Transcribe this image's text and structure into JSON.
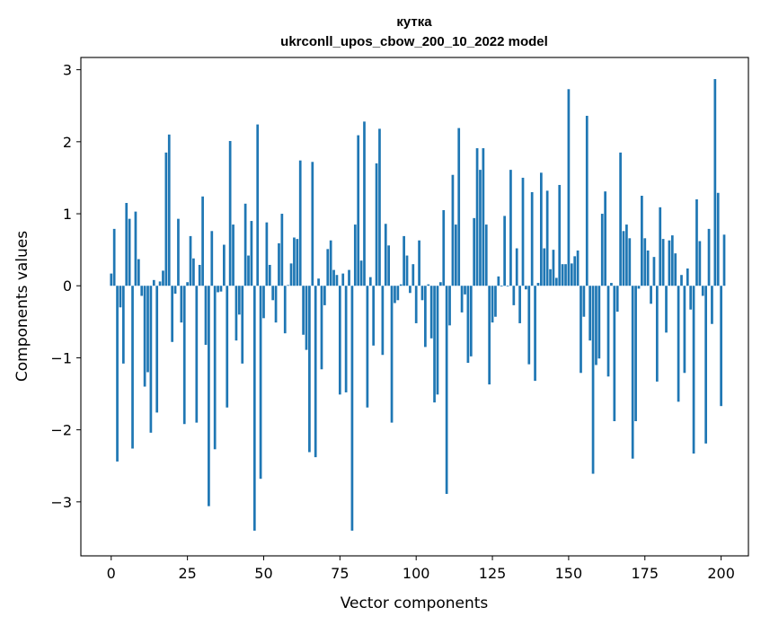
{
  "chart_data": {
    "type": "bar",
    "title": "кутка",
    "subtitle": "ukrconll_upos_cbow_200_10_2022 model",
    "xlabel": "Vector components",
    "ylabel": "Components values",
    "xlim": [
      -9.95,
      208.95
    ],
    "ylim": [
      -3.75,
      3.17
    ],
    "xticks": [
      0,
      25,
      50,
      75,
      100,
      125,
      150,
      175,
      200
    ],
    "yticks": [
      -3,
      -2,
      -1,
      0,
      1,
      2,
      3
    ],
    "ytick_labels": [
      "−3",
      "−2",
      "−1",
      "0",
      "1",
      "2",
      "3"
    ],
    "bar_color": "#1f77b4",
    "grid": false,
    "values": [
      0.17,
      0.79,
      -2.44,
      -0.3,
      -1.08,
      1.15,
      0.93,
      -2.26,
      1.03,
      0.37,
      -0.14,
      -1.4,
      -1.2,
      -2.04,
      0.08,
      -1.76,
      0.06,
      0.21,
      1.85,
      2.1,
      -0.78,
      -0.11,
      0.93,
      -0.51,
      -1.92,
      0.05,
      0.69,
      0.38,
      -1.9,
      0.29,
      1.24,
      -0.82,
      -3.06,
      0.76,
      -2.27,
      -0.09,
      -0.08,
      0.57,
      -1.69,
      2.01,
      0.85,
      -0.76,
      -0.4,
      -1.08,
      1.14,
      0.42,
      0.9,
      -3.4,
      2.24,
      -2.68,
      -0.45,
      0.88,
      0.29,
      -0.2,
      -0.51,
      0.59,
      1.0,
      -0.66,
      0.01,
      0.31,
      0.67,
      0.65,
      1.74,
      -0.68,
      -0.89,
      -2.31,
      1.72,
      -2.38,
      0.1,
      -1.16,
      -0.27,
      0.51,
      0.63,
      0.22,
      0.15,
      -1.51,
      0.17,
      -1.48,
      0.22,
      -3.4,
      0.85,
      2.09,
      0.35,
      2.28,
      -1.69,
      0.12,
      -0.83,
      1.7,
      2.18,
      -0.96,
      0.86,
      0.56,
      -1.9,
      -0.24,
      -0.2,
      0.02,
      0.69,
      0.42,
      -0.1,
      0.3,
      -0.52,
      0.63,
      -0.2,
      -0.85,
      0.02,
      -0.73,
      -1.62,
      -1.51,
      0.05,
      1.05,
      -2.89,
      -0.55,
      1.54,
      0.85,
      2.19,
      -0.37,
      -0.12,
      -1.07,
      -0.98,
      0.94,
      1.91,
      1.61,
      1.91,
      0.85,
      -1.37,
      -0.51,
      -0.43,
      0.13,
      -0.01,
      0.97,
      -0.01,
      1.61,
      -0.27,
      0.52,
      -0.52,
      1.5,
      -0.05,
      -1.09,
      1.3,
      -1.32,
      0.04,
      1.57,
      0.52,
      1.32,
      0.23,
      0.5,
      0.11,
      1.4,
      0.3,
      0.3,
      2.73,
      0.31,
      0.41,
      0.49,
      -1.21,
      -0.43,
      2.36,
      -0.76,
      -2.61,
      -1.1,
      -1.01,
      1.0,
      1.31,
      -1.26,
      0.04,
      -1.88,
      -0.36,
      1.85,
      0.76,
      0.85,
      0.66,
      -2.4,
      -1.88,
      -0.04,
      1.25,
      0.66,
      0.49,
      -0.25,
      0.4,
      -1.33,
      1.09,
      0.65,
      -0.65,
      0.63,
      0.7,
      0.45,
      -1.61,
      0.15,
      -1.21,
      0.24,
      -0.33,
      -2.33,
      1.2,
      0.62,
      -0.14,
      -2.19,
      0.79,
      -0.53,
      2.87,
      1.29,
      -1.67,
      0.71
    ]
  }
}
